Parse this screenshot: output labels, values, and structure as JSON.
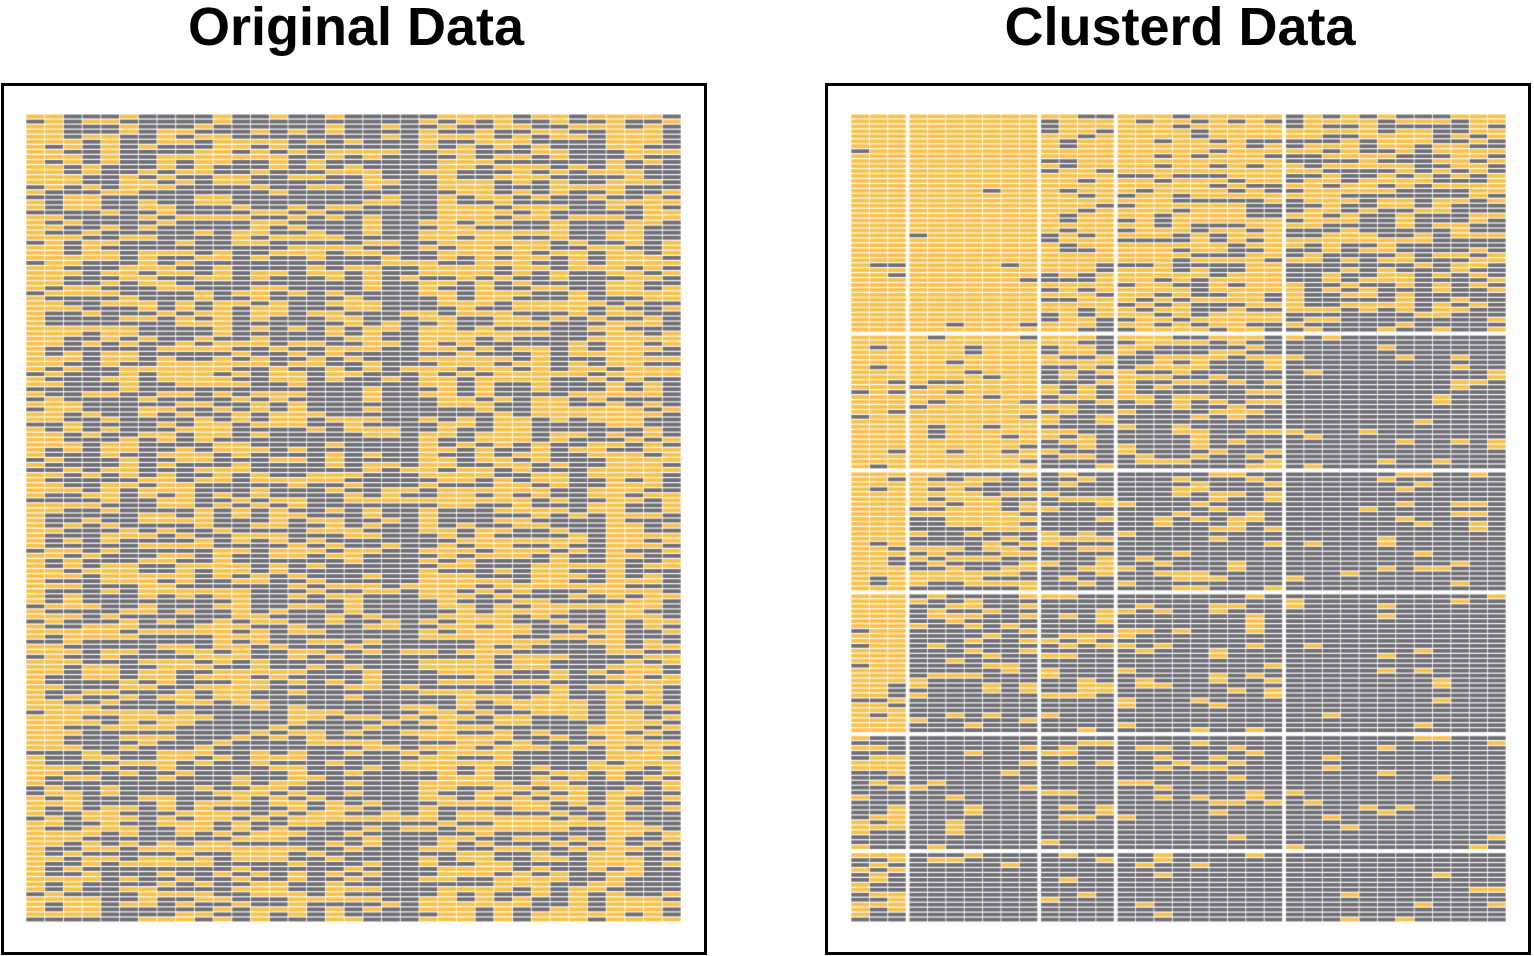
{
  "chart_data": [
    {
      "type": "heatmap",
      "title": "Original Data",
      "rows": 160,
      "cols": 35,
      "value_colors": {
        "1": "#F8C14B",
        "0": "#6F6E75"
      },
      "cell_border_color": "#FFFFFF",
      "column_mean_profile": [
        0.8,
        0.55,
        0.45,
        0.4,
        0.45,
        0.4,
        0.35,
        0.5,
        0.45,
        0.45,
        0.5,
        0.4,
        0.45,
        0.4,
        0.35,
        0.3,
        0.4,
        0.35,
        0.4,
        0.2,
        0.15,
        0.55,
        0.6,
        0.55,
        0.6,
        0.6,
        0.5,
        0.55,
        0.45,
        0.4,
        0.35,
        0.8,
        0.6,
        0.5,
        0.35
      ]
    },
    {
      "type": "heatmap",
      "title": "Clusterd Data",
      "rows": 160,
      "cols": 35,
      "value_colors": {
        "1": "#F8C14B",
        "0": "#6F6E75"
      },
      "cell_border_color": "#FFFFFF",
      "row_clusters": [
        44,
        27,
        24,
        28,
        23,
        14
      ],
      "column_clusters": [
        3,
        7,
        4,
        9,
        12
      ],
      "block_means": [
        [
          0.95,
          0.97,
          0.75,
          0.7,
          0.45
        ],
        [
          0.9,
          0.85,
          0.45,
          0.35,
          0.08
        ],
        [
          0.9,
          0.55,
          0.35,
          0.25,
          0.08
        ],
        [
          0.85,
          0.25,
          0.25,
          0.15,
          0.05
        ],
        [
          0.4,
          0.08,
          0.2,
          0.1,
          0.05
        ],
        [
          0.6,
          0.08,
          0.1,
          0.08,
          0.05
        ]
      ]
    }
  ]
}
